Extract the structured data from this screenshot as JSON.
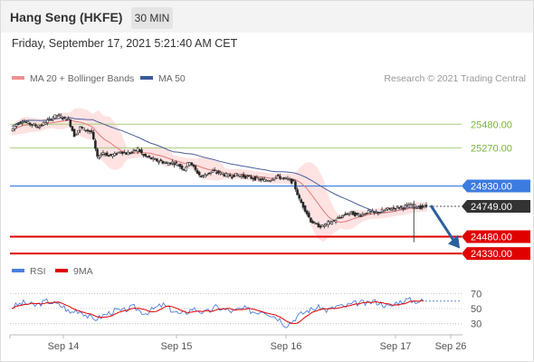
{
  "header": {
    "title": "Hang Seng (HKFE)",
    "interval": "30 MIN",
    "datetime": "Friday, September 17, 2021 5:21:40 AM CET"
  },
  "legend": {
    "bollinger": "MA 20 + Bollinger Bands",
    "ma50": "MA 50",
    "credit": "Research © 2021 Trading Central"
  },
  "colors": {
    "support": "#e00000",
    "resistance_blue": "#3c7be0",
    "target_green": "#a6cf7a",
    "ma50": "#4a5f9a",
    "ma20": "#e47878",
    "band_fill": "#ffd8d8",
    "rsi": "#4c7fdf",
    "rsi_ma": "#e00000",
    "arrow": "#2c5f9e",
    "last_price": "#333333"
  },
  "chart_data": [
    {
      "type": "candlestick",
      "title": "Hang Seng (HKFE) 30 MIN",
      "x_ticks": [
        "Sep 14",
        "Sep 15",
        "Sep 16",
        "Sep 17",
        "Sep 26"
      ],
      "ylim": [
        24250,
        25780
      ],
      "levels": [
        {
          "label": "25480.00",
          "value": 25480,
          "kind": "target"
        },
        {
          "label": "25270.00",
          "value": 25270,
          "kind": "target"
        },
        {
          "label": "24930.00",
          "value": 24930,
          "kind": "pivot"
        },
        {
          "label": "24749.00",
          "value": 24749,
          "kind": "last"
        },
        {
          "label": "24480.00",
          "value": 24480,
          "kind": "support"
        },
        {
          "label": "24330.00",
          "value": 24330,
          "kind": "support"
        }
      ],
      "price_path": [
        25420,
        25480,
        25510,
        25490,
        25470,
        25460,
        25500,
        25530,
        25560,
        25540,
        25520,
        25380,
        25450,
        25430,
        25410,
        25180,
        25230,
        25200,
        25210,
        25240,
        25220,
        25230,
        25260,
        25200,
        25180,
        25160,
        25150,
        25130,
        25140,
        25120,
        25080,
        25150,
        25070,
        25010,
        25040,
        25060,
        25050,
        25030,
        25020,
        25030,
        25020,
        25010,
        25000,
        24990,
        24980,
        24990,
        25020,
        25000,
        24990,
        24960,
        24810,
        24720,
        24620,
        24580,
        24570,
        24600,
        24620,
        24650,
        24680,
        24690,
        24670,
        24680,
        24700,
        24690,
        24700,
        24720,
        24730,
        24740,
        24740,
        24760,
        24750,
        24740,
        24749
      ],
      "series": [
        {
          "name": "MA 20 + Bollinger Bands"
        },
        {
          "name": "MA 50"
        }
      ]
    },
    {
      "type": "line",
      "title": "RSI",
      "series": [
        {
          "name": "RSI"
        },
        {
          "name": "9MA"
        }
      ],
      "y_ticks": [
        "70",
        "50",
        "30"
      ],
      "ylim": [
        20,
        80
      ],
      "rsi_path": [
        52,
        55,
        58,
        56,
        54,
        57,
        60,
        58,
        55,
        52,
        44,
        48,
        46,
        40,
        36,
        38,
        42,
        45,
        48,
        46,
        50,
        52,
        47,
        44,
        48,
        52,
        55,
        50,
        46,
        42,
        45,
        50,
        48,
        44,
        47,
        52,
        50,
        48,
        46,
        49,
        50,
        47,
        45,
        48,
        44,
        40,
        36,
        28,
        32,
        40,
        44,
        48,
        50,
        52,
        48,
        50,
        54,
        52,
        55,
        57,
        58,
        56,
        60,
        58,
        55,
        52,
        58,
        60,
        62,
        60,
        60,
        60
      ]
    }
  ]
}
